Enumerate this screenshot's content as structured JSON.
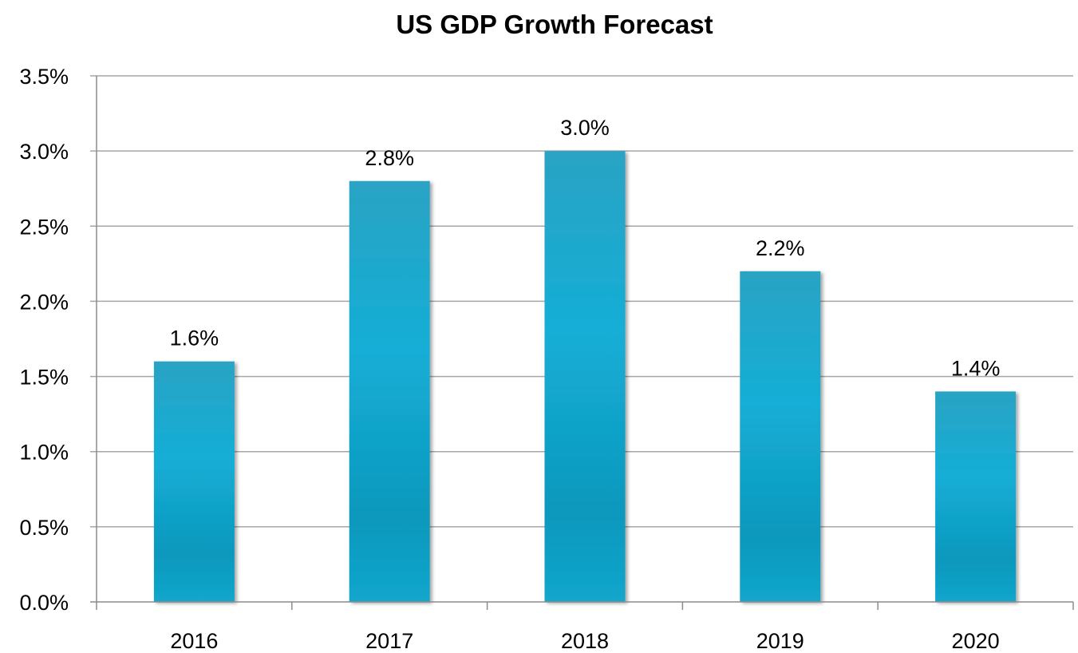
{
  "chart_data": {
    "type": "bar",
    "title": "US GDP Growth Forecast",
    "categories": [
      "2016",
      "2017",
      "2018",
      "2019",
      "2020"
    ],
    "values": [
      1.6,
      2.8,
      3.0,
      2.2,
      1.4
    ],
    "data_labels": [
      "1.6%",
      "2.8%",
      "3.0%",
      "2.2%",
      "1.4%"
    ],
    "y_ticks": [
      0.0,
      0.5,
      1.0,
      1.5,
      2.0,
      2.5,
      3.0,
      3.5
    ],
    "y_tick_labels": [
      "0.0%",
      "0.5%",
      "1.0%",
      "1.5%",
      "2.0%",
      "2.5%",
      "3.0%",
      "3.5%"
    ],
    "ylim": [
      0,
      3.5
    ],
    "grid": true,
    "legend": "none",
    "colors": {
      "bar_top": "#2aa3c4",
      "bar_mid": "#14aed6",
      "bar_bottom": "#0e98bd",
      "bar_edge": "#1ab8de"
    }
  }
}
